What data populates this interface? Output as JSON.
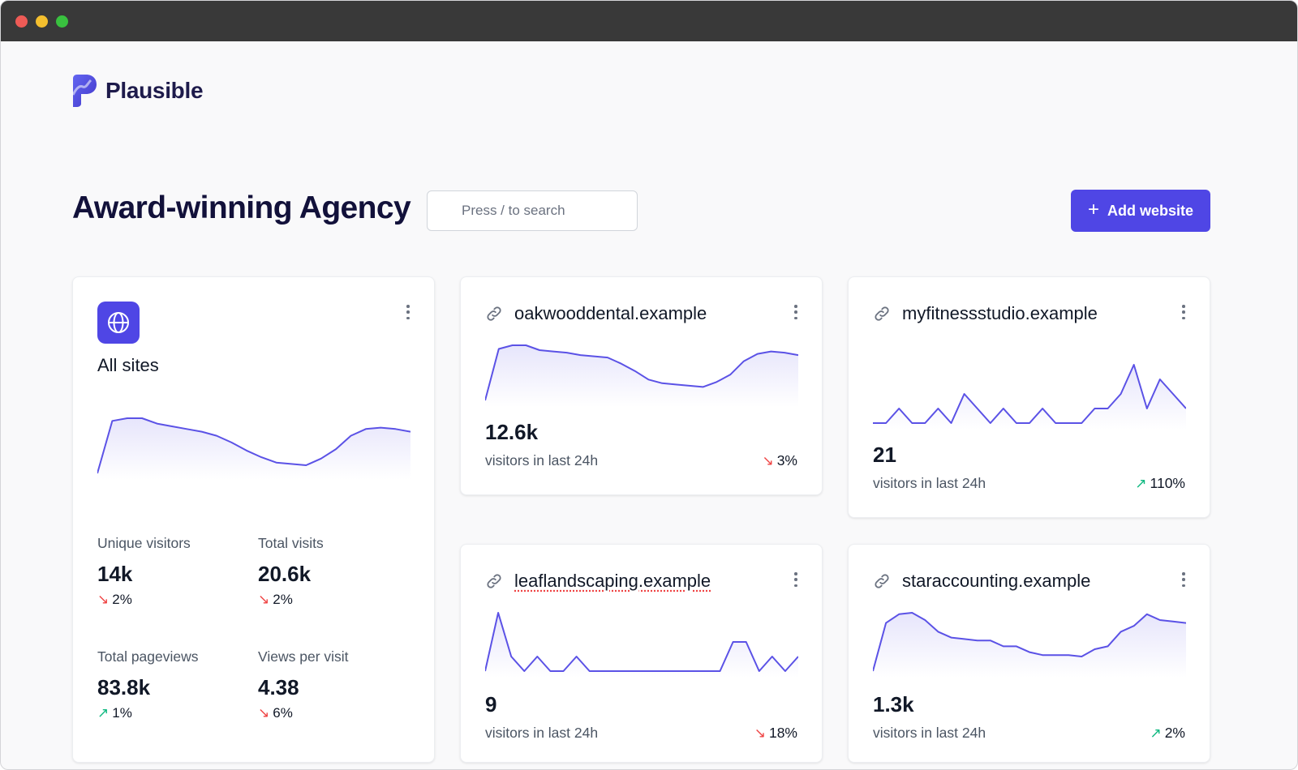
{
  "app": {
    "name": "Plausible"
  },
  "header": {
    "title": "Award-winning Agency",
    "search_placeholder": "Press / to search",
    "add_button": "Add website"
  },
  "colors": {
    "accent": "#4f46e5",
    "down": "#ef4444",
    "up": "#10b981"
  },
  "all_sites": {
    "label": "All sites",
    "icon": "globe-icon",
    "sparkline": [
      5,
      44,
      46,
      46,
      42,
      40,
      38,
      36,
      33,
      28,
      22,
      17,
      13,
      12,
      11,
      16,
      23,
      33,
      38,
      39,
      38,
      36
    ],
    "metrics": [
      {
        "label": "Unique visitors",
        "value": "14k",
        "change": "2%",
        "direction": "down"
      },
      {
        "label": "Total visits",
        "value": "20.6k",
        "change": "2%",
        "direction": "down"
      },
      {
        "label": "Total pageviews",
        "value": "83.8k",
        "change": "1%",
        "direction": "up"
      },
      {
        "label": "Views per visit",
        "value": "4.38",
        "change": "6%",
        "direction": "down"
      }
    ]
  },
  "sites": [
    {
      "domain": "oakwooddental.example",
      "visitors": "12.6k",
      "subtitle": "visitors in last 24h",
      "change": "3%",
      "direction": "down",
      "sparkline": [
        3,
        45,
        48,
        48,
        44,
        43,
        42,
        40,
        39,
        38,
        33,
        27,
        20,
        17,
        16,
        15,
        14,
        18,
        24,
        35,
        41,
        43,
        42,
        40
      ]
    },
    {
      "domain": "myfitnessstudio.example",
      "visitors": "21",
      "subtitle": "visitors in last 24h",
      "change": "110%",
      "direction": "up",
      "sparkline": [
        1,
        1,
        2,
        1,
        1,
        2,
        1,
        3,
        2,
        1,
        2,
        1,
        1,
        2,
        1,
        1,
        1,
        2,
        2,
        3,
        5,
        2,
        4,
        3,
        2
      ]
    },
    {
      "domain": "leaflandscaping.example",
      "visitors": "9",
      "subtitle": "visitors in last 24h",
      "change": "18%",
      "direction": "down",
      "sparkline": [
        0,
        4,
        1,
        0,
        1,
        0,
        0,
        1,
        0,
        0,
        0,
        0,
        0,
        0,
        0,
        0,
        0,
        0,
        0,
        2,
        2,
        0,
        1,
        0,
        1
      ]
    },
    {
      "domain": "staraccounting.example",
      "visitors": "1.3k",
      "subtitle": "visitors in last 24h",
      "change": "2%",
      "direction": "up",
      "sparkline": [
        5,
        38,
        44,
        45,
        40,
        32,
        28,
        27,
        26,
        26,
        22,
        22,
        18,
        16,
        16,
        16,
        15,
        20,
        22,
        32,
        36,
        44,
        40,
        39,
        38
      ]
    }
  ]
}
